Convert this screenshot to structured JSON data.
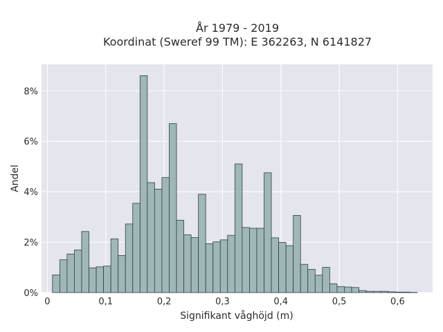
{
  "chart_data": {
    "type": "bar",
    "title_line1": "År 1979 - 2019",
    "title_line2": "Koordinat (Sweref 99 TM): E 362263, N 6141827",
    "xlabel": "Signifikant våghöjd (m)",
    "ylabel": "Andel",
    "xlim": [
      -0.01,
      0.66
    ],
    "ylim": [
      0,
      0.0905
    ],
    "x_ticks": [
      0,
      0.1,
      0.2,
      0.3,
      0.4,
      0.5,
      0.6
    ],
    "x_tick_labels": [
      "0",
      "0,1",
      "0,2",
      "0,3",
      "0,4",
      "0,5",
      "0,6"
    ],
    "y_ticks": [
      0,
      0.02,
      0.04,
      0.06,
      0.08
    ],
    "y_tick_labels": [
      "0%",
      "2%",
      "4%",
      "6%",
      "8%"
    ],
    "bin_width": 0.0125,
    "bin_start": 0.00875,
    "values": [
      0.007,
      0.013,
      0.0153,
      0.0169,
      0.0242,
      0.0098,
      0.0102,
      0.0105,
      0.0213,
      0.0147,
      0.0272,
      0.0354,
      0.086,
      0.0436,
      0.041,
      0.0456,
      0.067,
      0.0287,
      0.0229,
      0.0218,
      0.039,
      0.0194,
      0.0201,
      0.0209,
      0.0227,
      0.051,
      0.0258,
      0.0255,
      0.0255,
      0.0475,
      0.0217,
      0.0199,
      0.0186,
      0.0306,
      0.0112,
      0.0092,
      0.0069,
      0.01,
      0.0035,
      0.0024,
      0.0022,
      0.002,
      0.0008,
      0.0005,
      0.0005,
      0.0005,
      0.0003,
      0.0002,
      0.0002,
      0.0001
    ],
    "grid": true
  }
}
